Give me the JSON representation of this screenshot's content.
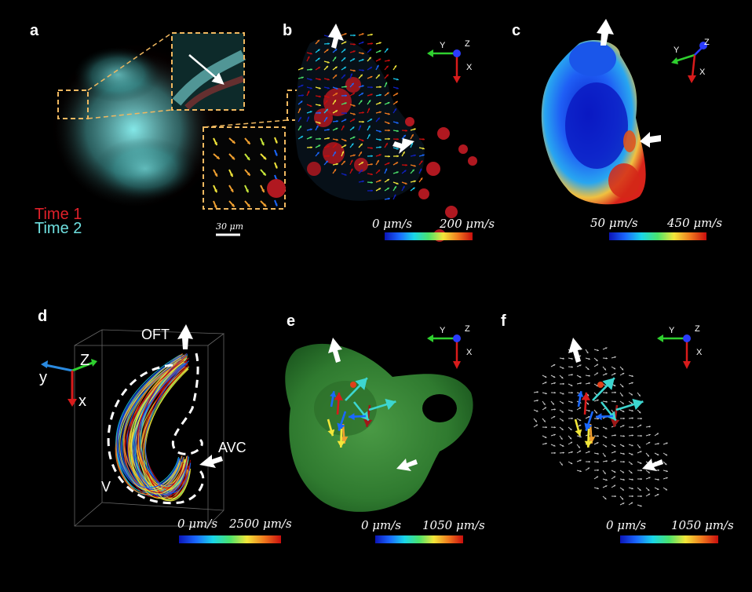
{
  "panels": {
    "a": "a",
    "b": "b",
    "c": "c",
    "d": "d",
    "e": "e",
    "f": "f"
  },
  "panel_a": {
    "legend_time1": "Time 1",
    "legend_time2": "Time 2",
    "scalebar": "30 μm"
  },
  "panel_b": {
    "cbar_min": "0 μm/s",
    "cbar_max": "200 μm/s"
  },
  "panel_c": {
    "cbar_min": "50 μm/s",
    "cbar_max": "450 μm/s"
  },
  "panel_d": {
    "label_oft": "OFT",
    "label_avc": "AVC",
    "label_v": "V",
    "cbar_min": "0 μm/s",
    "cbar_max": "2500 μm/s"
  },
  "panel_e": {
    "cbar_min": "0 μm/s",
    "cbar_max": "1050 μm/s"
  },
  "panel_f": {
    "cbar_min": "0 μm/s",
    "cbar_max": "1050 μm/s"
  },
  "axes": {
    "x": "X",
    "y": "Y",
    "z": "Z",
    "x_lower": "x",
    "y_lower": "y",
    "z_upper": "Z"
  },
  "colors": {
    "time1": "#e0202a",
    "time2": "#6fe0e0",
    "dashed_box": "#f0b860",
    "axis_x": "#d81b1b",
    "axis_y": "#2fd02f",
    "axis_z": "#2a3cff"
  },
  "colormap": "jet"
}
